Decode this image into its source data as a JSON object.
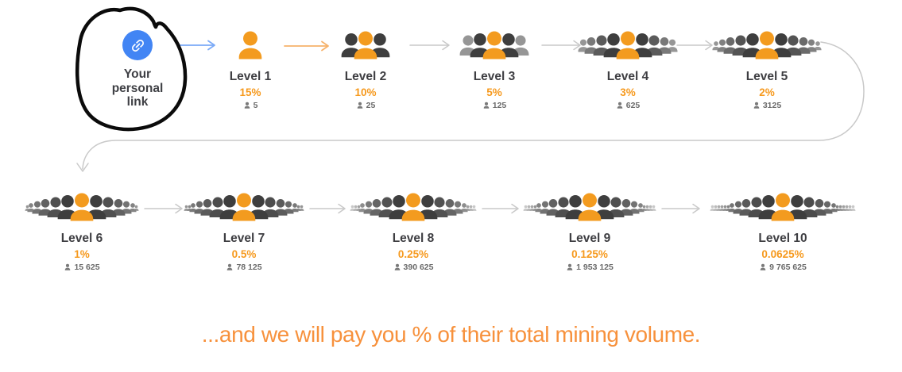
{
  "personal_link": {
    "label": "Your personal link",
    "icon": "link-icon",
    "annotation": "hand-drawn-circle"
  },
  "levels": [
    {
      "label": "Level 1",
      "percent": "15%",
      "count": "5",
      "crowd": 1
    },
    {
      "label": "Level 2",
      "percent": "10%",
      "count": "25",
      "crowd": 3
    },
    {
      "label": "Level 3",
      "percent": "5%",
      "count": "125",
      "crowd": 5
    },
    {
      "label": "Level 4",
      "percent": "3%",
      "count": "625",
      "crowd": 9
    },
    {
      "label": "Level 5",
      "percent": "2%",
      "count": "3125",
      "crowd": 11
    },
    {
      "label": "Level 6",
      "percent": "1%",
      "count": "15 625",
      "crowd": 13
    },
    {
      "label": "Level 7",
      "percent": "0.5%",
      "count": "78 125",
      "crowd": 15
    },
    {
      "label": "Level 8",
      "percent": "0.25%",
      "count": "390 625",
      "crowd": 17
    },
    {
      "label": "Level 9",
      "percent": "0.125%",
      "count": "1 953 125",
      "crowd": 19
    },
    {
      "label": "Level 10",
      "percent": "0.0625%",
      "count": "9 765 625",
      "crowd": 23
    }
  ],
  "footer": {
    "text": "...and we will pay you % of their total mining volume."
  },
  "colors": {
    "accent_blue": "#4285F4",
    "person_orange": "#F39B1F",
    "person_dark": "#3E3E3E",
    "percent_orange": "#F6991D",
    "footer_orange": "#F7913C",
    "arrow_blue": "#7BAAF7",
    "arrow_orange": "#F6B26B",
    "arrow_gray": "#C9C9C9",
    "annotation_black": "#0B0B0B"
  },
  "icons": {
    "personal": "link-icon",
    "crowd": "people-icon",
    "count": "person-icon"
  }
}
